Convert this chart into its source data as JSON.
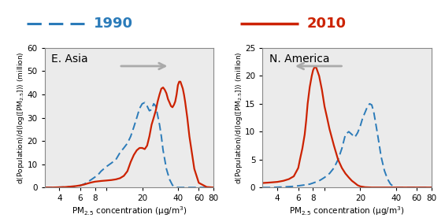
{
  "color_1990": "#2B7BB9",
  "color_2010": "#CC2200",
  "arrow_color": "#AAAAAA",
  "title_1990_color": "#2B7BB9",
  "title_2010_color": "#CC2200",
  "east_asia": {
    "label": "E. Asia",
    "arrow_direction": "right",
    "ylim": [
      0,
      60
    ],
    "yticks": [
      0,
      10,
      20,
      30,
      40,
      50,
      60
    ],
    "line_1990": {
      "x": [
        3.0,
        3.5,
        4.0,
        4.5,
        5.0,
        5.5,
        6.0,
        6.5,
        7.0,
        7.5,
        8.0,
        8.5,
        9.0,
        10.0,
        11.0,
        12.0,
        13.0,
        14.0,
        15.0,
        16.0,
        17.0,
        18.0,
        19.0,
        20.0,
        21.0,
        22.0,
        23.0,
        24.0,
        25.0,
        26.0,
        27.0,
        28.0,
        29.0,
        30.0,
        32.0,
        34.0,
        36.0,
        38.0,
        40.0,
        42.0,
        44.0,
        46.0,
        48.0,
        50.0,
        55.0,
        60.0,
        70.0,
        80.0
      ],
      "y": [
        0,
        0.0,
        0.1,
        0.2,
        0.3,
        0.5,
        0.8,
        1.5,
        2.5,
        3.5,
        4.5,
        5.5,
        7.0,
        9.0,
        10.5,
        12.0,
        15.0,
        17.0,
        19.0,
        22.0,
        26.0,
        30.0,
        34.0,
        36.0,
        36.5,
        35.0,
        33.0,
        33.5,
        36.0,
        35.0,
        31.0,
        27.0,
        22.0,
        16.0,
        8.0,
        3.5,
        1.0,
        0.2,
        0.0,
        0.0,
        0.0,
        0.0,
        0.0,
        0.0,
        0.0,
        0.0,
        0.0,
        0.0
      ]
    },
    "line_2010": {
      "x": [
        3.0,
        3.5,
        4.0,
        4.5,
        5.0,
        5.5,
        6.0,
        6.5,
        7.0,
        7.5,
        8.0,
        9.0,
        10.0,
        11.0,
        12.0,
        13.0,
        14.0,
        15.0,
        16.0,
        17.0,
        18.0,
        19.0,
        20.0,
        21.0,
        22.0,
        23.0,
        24.0,
        25.0,
        26.0,
        27.0,
        28.0,
        29.0,
        30.0,
        31.0,
        32.0,
        33.0,
        34.0,
        35.0,
        36.0,
        37.0,
        38.0,
        39.0,
        40.0,
        41.0,
        42.0,
        43.0,
        44.0,
        45.0,
        46.0,
        48.0,
        50.0,
        55.0,
        60.0,
        70.0,
        80.0
      ],
      "y": [
        0,
        0.0,
        0.1,
        0.2,
        0.4,
        0.6,
        0.9,
        1.3,
        1.8,
        2.2,
        2.5,
        2.8,
        3.0,
        3.2,
        3.5,
        4.0,
        5.0,
        7.0,
        11.0,
        14.0,
        16.0,
        17.0,
        17.0,
        16.5,
        18.0,
        22.0,
        27.0,
        30.0,
        33.0,
        37.0,
        40.0,
        42.5,
        43.0,
        42.0,
        40.5,
        38.0,
        36.5,
        35.0,
        34.5,
        35.5,
        37.0,
        40.0,
        44.0,
        45.5,
        45.5,
        44.0,
        42.5,
        40.0,
        37.0,
        30.0,
        22.0,
        8.0,
        2.0,
        0.2,
        0.0
      ]
    }
  },
  "north_america": {
    "label": "N. America",
    "arrow_direction": "left",
    "ylim": [
      0,
      25
    ],
    "yticks": [
      0,
      5,
      10,
      15,
      20,
      25
    ],
    "line_1990": {
      "x": [
        3.0,
        3.5,
        4.0,
        4.5,
        5.0,
        5.5,
        6.0,
        6.5,
        7.0,
        7.5,
        8.0,
        8.5,
        9.0,
        9.5,
        10.0,
        11.0,
        12.0,
        13.0,
        14.0,
        15.0,
        16.0,
        17.0,
        18.0,
        19.0,
        20.0,
        21.0,
        22.0,
        23.0,
        24.0,
        25.0,
        26.0,
        27.0,
        28.0,
        29.0,
        30.0,
        32.0,
        34.0,
        36.0,
        38.0,
        40.0,
        42.0,
        44.0,
        46.0,
        48.0,
        50.0,
        55.0,
        60.0,
        70.0,
        80.0
      ],
      "y": [
        0,
        0.0,
        0.05,
        0.1,
        0.15,
        0.2,
        0.3,
        0.4,
        0.5,
        0.6,
        0.8,
        1.0,
        1.2,
        1.5,
        1.8,
        2.5,
        3.5,
        5.0,
        7.0,
        9.5,
        10.0,
        9.5,
        9.0,
        9.8,
        11.0,
        12.5,
        13.5,
        14.5,
        15.0,
        14.8,
        13.5,
        11.5,
        9.5,
        7.5,
        5.5,
        3.0,
        1.5,
        0.6,
        0.2,
        0.0,
        0.0,
        0.0,
        0.0,
        0.0,
        0.0,
        0.0,
        0.0,
        0.0,
        0.0
      ]
    },
    "line_2010": {
      "x": [
        3.0,
        3.5,
        4.0,
        4.5,
        5.0,
        5.5,
        6.0,
        6.2,
        6.5,
        6.8,
        7.0,
        7.2,
        7.5,
        7.8,
        8.0,
        8.2,
        8.5,
        9.0,
        9.5,
        10.0,
        10.5,
        11.0,
        12.0,
        13.0,
        14.0,
        15.0,
        16.0,
        17.0,
        18.0,
        19.0,
        20.0,
        22.0,
        25.0,
        30.0,
        40.0,
        50.0,
        60.0,
        70.0,
        80.0
      ],
      "y": [
        0.8,
        0.9,
        1.0,
        1.2,
        1.5,
        2.0,
        3.5,
        5.0,
        7.0,
        9.5,
        12.0,
        15.0,
        18.0,
        20.0,
        21.0,
        21.5,
        21.5,
        20.0,
        17.5,
        14.5,
        12.5,
        10.5,
        7.5,
        5.0,
        3.5,
        2.5,
        1.8,
        1.2,
        0.8,
        0.4,
        0.2,
        0.05,
        0.0,
        0.0,
        0.0,
        0.0,
        0.0,
        0.0,
        0.0
      ]
    }
  },
  "xlabel": "PM$_{2.5}$ concentration (μg/m$^3$)",
  "ylabel": "d(Population)/d(log([PM$_{2.5}$])) (million)",
  "bg_color": "#EBEBEB"
}
